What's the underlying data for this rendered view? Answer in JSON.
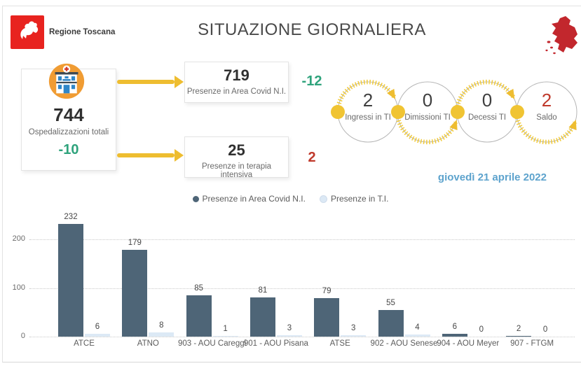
{
  "header": {
    "org": "Regione Toscana",
    "title": "SITUAZIONE GIORNALIERA",
    "date": "giovedì 21 aprile 2022"
  },
  "cards": {
    "total": {
      "value": "744",
      "label": "Ospedalizzazioni totali",
      "delta": "-10"
    },
    "covid": {
      "value": "719",
      "label": "Presenze in Area Covid N.I.",
      "delta": "-12"
    },
    "icu": {
      "value": "25",
      "label": "Presenze in terapia intensiva",
      "delta": "2"
    }
  },
  "flow": {
    "steps": [
      {
        "value": "2",
        "label": "Ingressi in TI",
        "value_color": "#3f3f3f"
      },
      {
        "value": "0",
        "label": "Dimissioni TI",
        "value_color": "#3f3f3f"
      },
      {
        "value": "0",
        "label": "Decessi TI",
        "value_color": "#3f3f3f"
      },
      {
        "value": "2",
        "label": "Saldo",
        "value_color": "#c0392b"
      }
    ]
  },
  "chart_data": {
    "type": "bar",
    "categories": [
      "ATCE",
      "ATNO",
      "903 - AOU Careggi",
      "901 - AOU Pisana",
      "ATSE",
      "902 - AOU Senese",
      "904 - AOU Meyer",
      "907 - FTGM"
    ],
    "series": [
      {
        "name": "Presenze in Area Covid N.I.",
        "color": "#4e6577",
        "values": [
          232,
          179,
          85,
          81,
          79,
          55,
          6,
          2
        ]
      },
      {
        "name": "Presenze in T.I.",
        "color": "#dce9f5",
        "values": [
          6,
          8,
          1,
          3,
          3,
          4,
          0,
          0
        ]
      }
    ],
    "yticks": [
      0,
      100,
      200
    ],
    "ylim": [
      0,
      240
    ],
    "grid": "dotted-horizontal",
    "legend_position": "top-center",
    "title": "",
    "xlabel": "",
    "ylabel": ""
  },
  "colors": {
    "positive_green": "#2fa37c",
    "negative_red": "#c0392b",
    "accent_yellow": "#eebd30",
    "date_blue": "#5da3cd",
    "logo_red": "#e8231f",
    "map_red": "#c2272d",
    "icon_orange": "#f09c33"
  }
}
